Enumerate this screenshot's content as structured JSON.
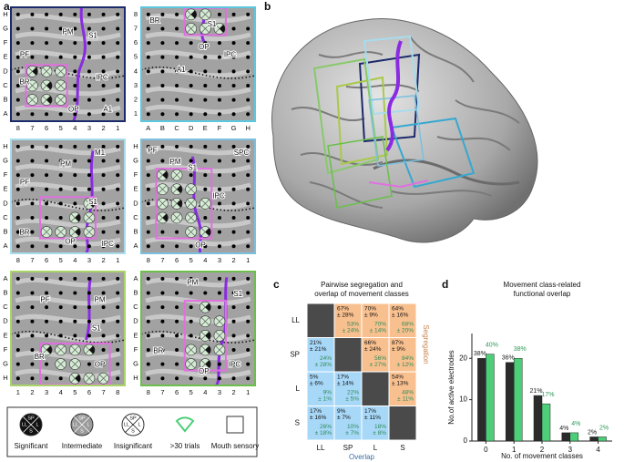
{
  "panel_labels": [
    "a",
    "b",
    "c",
    "d"
  ],
  "panel_a": {
    "grids": [
      {
        "rows": [
          "H",
          "G",
          "F",
          "E",
          "D",
          "C",
          "B",
          "A"
        ],
        "cols": [
          "8",
          "7",
          "6",
          "5",
          "4",
          "3",
          "2",
          "1"
        ],
        "labels": [
          "PM",
          "S1",
          "PF",
          "IPC",
          "BR",
          "OP",
          "A1"
        ],
        "border": "#1b2a6b"
      },
      {
        "rows": [
          "8",
          "7",
          "6",
          "5",
          "4",
          "3",
          "2",
          "1"
        ],
        "cols": [
          "A",
          "B",
          "C",
          "D",
          "E",
          "F",
          "G",
          "H"
        ],
        "labels": [
          "BR",
          "S1",
          "OP",
          "A1",
          "IPC"
        ],
        "border": "#5bc8e0"
      },
      {
        "rows": [
          "H",
          "G",
          "F",
          "E",
          "D",
          "C",
          "B",
          "A"
        ],
        "cols": [
          "8",
          "7",
          "6",
          "5",
          "4",
          "3",
          "2",
          "1"
        ],
        "labels": [
          "M1",
          "PM",
          "PF",
          "S1",
          "BR",
          "IPC",
          "OP"
        ],
        "border": "#a8dcec"
      },
      {
        "rows": [
          "H",
          "G",
          "F",
          "E",
          "D",
          "C",
          "B",
          "A"
        ],
        "cols": [
          "8",
          "7",
          "6",
          "5",
          "4",
          "3",
          "2",
          "1"
        ],
        "labels": [
          "PF",
          "PM",
          "S1",
          "SPC",
          "IPC",
          "OP"
        ],
        "border": "#7cc0de"
      },
      {
        "rows": [
          "A",
          "B",
          "C",
          "D",
          "E",
          "F",
          "G",
          "H"
        ],
        "cols": [
          "1",
          "2",
          "3",
          "4",
          "5",
          "6",
          "7",
          "8"
        ],
        "labels": [
          "PF",
          "PM",
          "S1",
          "BR",
          "OP"
        ],
        "border": "#a9d46a"
      },
      {
        "rows": [
          "A",
          "B",
          "C",
          "D",
          "E",
          "F",
          "G",
          "H"
        ],
        "cols": [
          "8",
          "7",
          "6",
          "5",
          "4",
          "3",
          "2",
          "1"
        ],
        "labels": [
          "PM",
          "S1",
          "BR",
          "OP",
          "IPC"
        ],
        "border": "#6bbf4a"
      }
    ],
    "legend": {
      "items": [
        "Significant",
        "Intermediate",
        "Insignificant",
        ">30 trials",
        "Mouth sensory"
      ],
      "icon_labels": [
        "SP",
        "LL",
        "L",
        "S"
      ]
    }
  },
  "panel_c": {
    "title": [
      "Pairwise segregation and",
      "overlap of movement classes"
    ],
    "classes": [
      "LL",
      "SP",
      "L",
      "S"
    ],
    "x_label": "Overlap",
    "y_label": "Segregation",
    "cells": [
      [
        null,
        [
          "67%",
          "± 28%",
          "53%",
          "± 24%"
        ],
        [
          "70%",
          "± 9%",
          "70%",
          "± 14%"
        ],
        [
          "64%",
          "± 16%",
          "68%",
          "± 20%"
        ]
      ],
      [
        [
          "21%",
          "± 21%",
          "24%",
          "± 28%"
        ],
        null,
        [
          "66%",
          "± 24%",
          "56%",
          "± 27%"
        ],
        [
          "87%",
          "± 9%",
          "84%",
          "± 12%"
        ]
      ],
      [
        [
          "5%",
          "± 6%",
          "9%",
          "± 1%"
        ],
        [
          "17%",
          "± 14%",
          "22%",
          "± 5%"
        ],
        null,
        [
          "54%",
          "± 13%",
          "48%",
          "± 11%"
        ]
      ],
      [
        [
          "17%",
          "± 16%",
          "26%",
          "± 18%"
        ],
        [
          "9%",
          "± 7%",
          "10%",
          "± 7%"
        ],
        [
          "17%",
          "± 11%",
          "18%",
          "± 8%"
        ],
        null
      ]
    ]
  },
  "chart_data": {
    "type": "bar",
    "title": [
      "Movement class-related",
      "functional overlap"
    ],
    "x_label": "No. of movement classes",
    "y_label": "No.of active electrodes",
    "categories": [
      "0",
      "1",
      "2",
      "3",
      "4"
    ],
    "series": [
      {
        "color": "#2b2b2b",
        "values": [
          20,
          19,
          11,
          2,
          1
        ],
        "percent_labels": [
          "38%",
          "36%",
          "21%",
          "4%",
          "2%"
        ],
        "label_color": "#222222"
      },
      {
        "color": "#4ccf78",
        "values": [
          21,
          20,
          9,
          2,
          1
        ],
        "percent_labels": [
          "40%",
          "38%",
          "17%",
          "4%",
          "2%"
        ],
        "label_color": "#2e9a58"
      }
    ],
    "ylim": [
      0,
      26
    ],
    "yticks": [
      0,
      10,
      20
    ]
  }
}
